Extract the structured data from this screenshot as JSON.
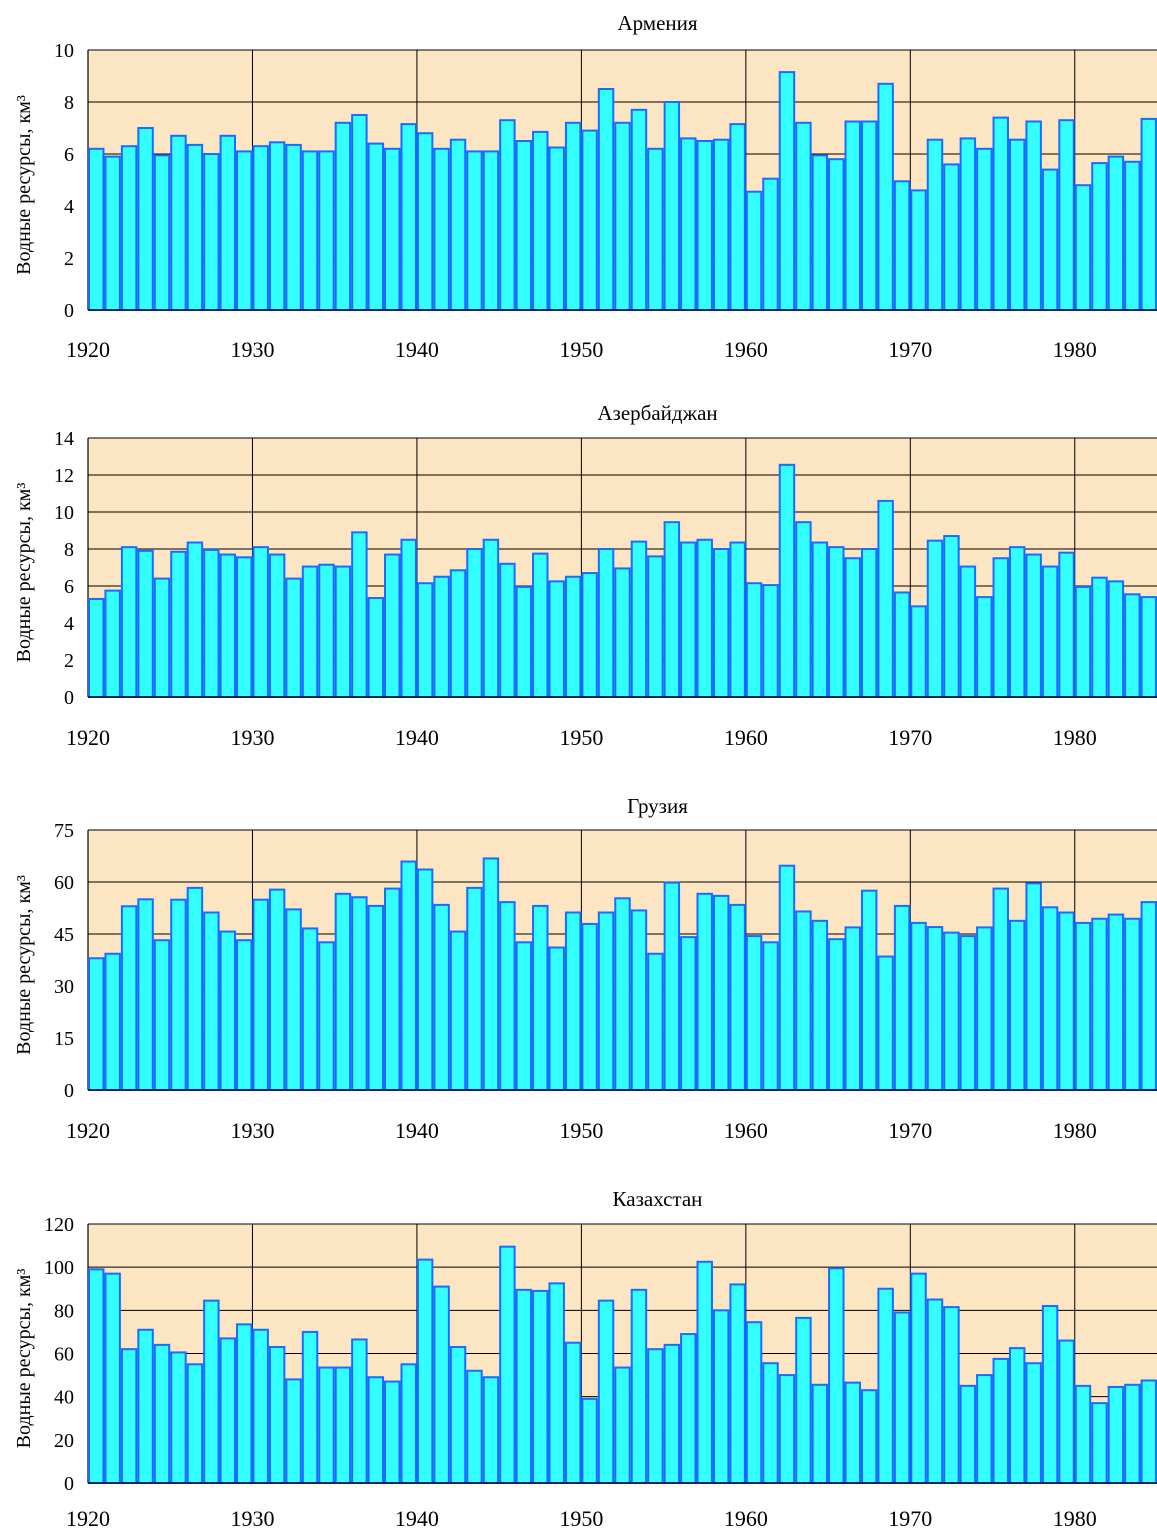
{
  "colors": {
    "plot_bg": "#fbe5c2",
    "bar_fill": "#33ffff",
    "bar_stroke": "#1a6bff",
    "grid": "#000000"
  },
  "chart_data": [
    {
      "type": "bar",
      "title": "Армения",
      "ylabel": "Водные ресурсы, км³",
      "xlim": [
        1920,
        1985
      ],
      "ylim": [
        0,
        10
      ],
      "yticks": [
        0,
        2,
        4,
        6,
        8,
        10
      ],
      "xticks": [
        1920,
        1930,
        1940,
        1950,
        1960,
        1970,
        1980
      ],
      "x_start": 1921,
      "values": [
        6.2,
        5.9,
        6.3,
        7.0,
        5.95,
        6.7,
        6.35,
        6.0,
        6.7,
        6.1,
        6.3,
        6.45,
        6.35,
        6.1,
        6.1,
        7.2,
        7.5,
        6.4,
        6.2,
        7.15,
        6.8,
        6.2,
        6.55,
        6.1,
        6.1,
        7.3,
        6.5,
        6.85,
        6.25,
        7.2,
        6.9,
        8.5,
        7.2,
        7.7,
        6.2,
        8.0,
        6.6,
        6.5,
        6.55,
        7.15,
        4.55,
        5.05,
        9.15,
        7.2,
        5.95,
        5.8,
        7.25,
        7.25,
        8.7,
        4.95,
        4.6,
        6.55,
        5.6,
        6.6,
        6.2,
        7.4,
        6.55,
        7.25,
        5.4,
        7.3,
        4.8,
        5.65,
        5.9,
        5.7,
        7.35
      ]
    },
    {
      "type": "bar",
      "title": "Азербайджан",
      "ylabel": "Водные ресурсы, км³",
      "xlim": [
        1920,
        1985
      ],
      "ylim": [
        0,
        14
      ],
      "yticks": [
        0,
        2,
        4,
        6,
        8,
        10,
        12,
        14
      ],
      "xticks": [
        1920,
        1930,
        1940,
        1950,
        1960,
        1970,
        1980
      ],
      "x_start": 1921,
      "values": [
        5.3,
        5.75,
        8.1,
        7.9,
        6.4,
        7.85,
        8.35,
        7.95,
        7.7,
        7.55,
        8.1,
        7.7,
        6.4,
        7.05,
        7.15,
        7.05,
        8.9,
        5.35,
        7.7,
        8.5,
        6.15,
        6.5,
        6.85,
        8.0,
        8.5,
        7.2,
        5.95,
        7.75,
        6.25,
        6.5,
        6.7,
        8.0,
        6.95,
        8.4,
        7.6,
        9.45,
        8.35,
        8.5,
        8.0,
        8.35,
        6.15,
        6.05,
        12.55,
        9.45,
        8.35,
        8.1,
        7.5,
        8.0,
        10.6,
        5.65,
        4.9,
        8.45,
        8.7,
        7.05,
        5.4,
        7.5,
        8.1,
        7.7,
        7.05,
        7.8,
        5.95,
        6.45,
        6.25,
        5.55,
        5.4
      ]
    },
    {
      "type": "bar",
      "title": "Грузия",
      "ylabel": "Водные ресурсы, км³",
      "xlim": [
        1920,
        1985
      ],
      "ylim": [
        0,
        75
      ],
      "yticks": [
        0,
        15,
        30,
        45,
        60,
        75
      ],
      "xticks": [
        1920,
        1930,
        1940,
        1950,
        1960,
        1970,
        1980
      ],
      "x_start": 1921,
      "values": [
        38,
        39.3,
        53,
        55,
        43.2,
        54.9,
        58.3,
        51.2,
        45.7,
        43.2,
        54.9,
        57.8,
        52.1,
        46.6,
        42.6,
        56.6,
        55.6,
        53.1,
        58.1,
        65.9,
        63.6,
        53.4,
        45.7,
        58.3,
        66.8,
        54.2,
        42.6,
        53.1,
        41.1,
        51.2,
        47.9,
        51.2,
        55.3,
        51.8,
        39.3,
        59.8,
        44.1,
        56.6,
        56.0,
        53.4,
        44.4,
        42.6,
        64.7,
        51.5,
        48.8,
        43.5,
        46.9,
        57.5,
        38.5,
        53.1,
        48.2,
        47.0,
        45.4,
        44.4,
        46.9,
        58.1,
        48.8,
        59.6,
        52.7,
        51.2,
        48.2,
        49.4,
        50.6,
        49.4,
        54.2
      ]
    },
    {
      "type": "bar",
      "title": "Казахстан",
      "ylabel": "Водные ресурсы, км³",
      "xlim": [
        1920,
        1985
      ],
      "ylim": [
        0,
        120
      ],
      "yticks": [
        0,
        20,
        40,
        60,
        80,
        100,
        120
      ],
      "xticks": [
        1920,
        1930,
        1940,
        1950,
        1960,
        1970,
        1980
      ],
      "x_start": 1921,
      "values": [
        99,
        97,
        62,
        71,
        64,
        60.5,
        55,
        84.5,
        67,
        73.5,
        71,
        63,
        48,
        70,
        53.5,
        53.5,
        66.5,
        49,
        47,
        55,
        103.5,
        91,
        63,
        52,
        49,
        109.5,
        89.5,
        89,
        92.5,
        65,
        39,
        84.5,
        53.5,
        89.5,
        62,
        64,
        69,
        102.5,
        80,
        92,
        74.5,
        55.5,
        50,
        76.5,
        45.5,
        99.5,
        46.5,
        43,
        90,
        79,
        97,
        85,
        81.5,
        45,
        50,
        57.5,
        62.5,
        55.5,
        82,
        66,
        45,
        37,
        44.5,
        45.5,
        47.5
      ]
    }
  ]
}
